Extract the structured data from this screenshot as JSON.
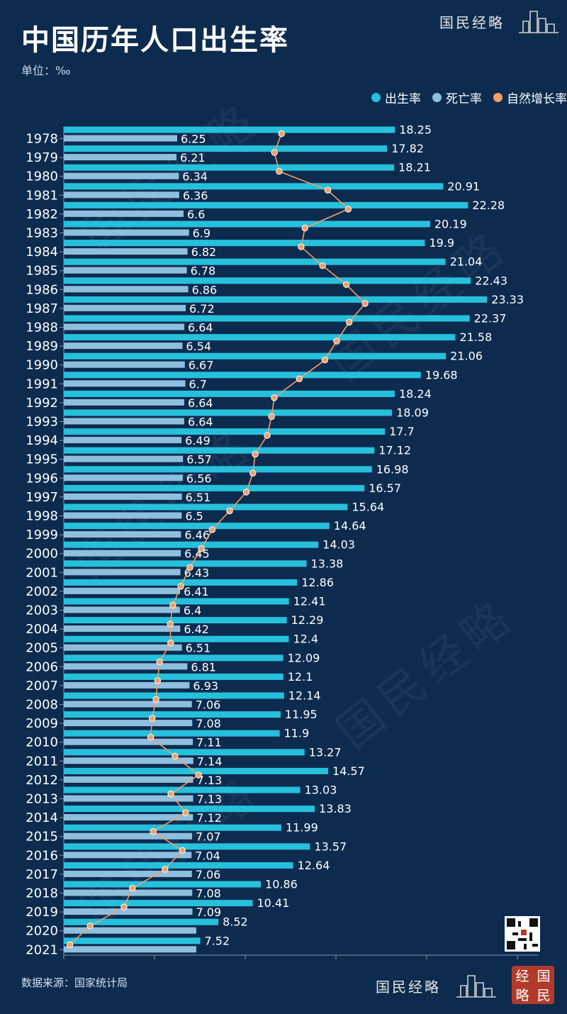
{
  "title": "中国历年人口出生率",
  "unit": "单位：‰",
  "source": "数据来源：国家统计局",
  "brand": "国民经略",
  "seal": [
    "经",
    "国",
    "略",
    "民"
  ],
  "legend": [
    "出生率",
    "死亡率",
    "自然增长率"
  ],
  "colors": {
    "birth": "#26c0dc",
    "death": "#8fbfdf",
    "growth": "#f0a06a",
    "background": "#0d2b4e"
  },
  "chart_data": {
    "type": "bar",
    "orientation": "horizontal",
    "categories": [
      "1978",
      "1979",
      "1980",
      "1981",
      "1982",
      "1983",
      "1984",
      "1985",
      "1986",
      "1987",
      "1988",
      "1989",
      "1990",
      "1991",
      "1992",
      "1993",
      "1994",
      "1995",
      "1996",
      "1997",
      "1998",
      "1999",
      "2000",
      "2001",
      "2002",
      "2003",
      "2004",
      "2005",
      "2006",
      "2007",
      "2008",
      "2009",
      "2010",
      "2011",
      "2012",
      "2013",
      "2014",
      "2015",
      "2016",
      "2017",
      "2018",
      "2019",
      "2020",
      "2021"
    ],
    "series": [
      {
        "name": "出生率",
        "type": "bar",
        "values": [
          18.25,
          17.82,
          18.21,
          20.91,
          22.28,
          20.19,
          19.9,
          21.04,
          22.43,
          23.33,
          22.37,
          21.58,
          21.06,
          19.68,
          18.24,
          18.09,
          17.7,
          17.12,
          16.98,
          16.57,
          15.64,
          14.64,
          14.03,
          13.38,
          12.86,
          12.41,
          12.29,
          12.4,
          12.09,
          12.1,
          12.14,
          11.95,
          11.9,
          13.27,
          14.57,
          13.03,
          13.83,
          11.99,
          13.57,
          12.64,
          10.86,
          10.41,
          8.52,
          7.52
        ]
      },
      {
        "name": "死亡率",
        "type": "bar",
        "values": [
          6.25,
          6.21,
          6.34,
          6.36,
          6.6,
          6.9,
          6.82,
          6.78,
          6.86,
          6.72,
          6.64,
          6.54,
          6.67,
          6.7,
          6.64,
          6.64,
          6.49,
          6.57,
          6.56,
          6.51,
          6.5,
          6.46,
          6.45,
          6.43,
          6.41,
          6.4,
          6.42,
          6.51,
          6.81,
          6.93,
          7.06,
          7.08,
          7.11,
          7.14,
          7.13,
          7.13,
          7.12,
          7.07,
          7.04,
          7.06,
          7.08,
          7.09,
          null,
          null
        ]
      },
      {
        "name": "自然增长率",
        "type": "line",
        "values": [
          12,
          11.61,
          11.87,
          14.55,
          15.68,
          13.29,
          13.08,
          14.26,
          15.57,
          16.61,
          15.73,
          15.04,
          14.39,
          12.98,
          11.6,
          11.45,
          11.21,
          10.55,
          10.42,
          10.06,
          9.14,
          8.18,
          7.58,
          6.95,
          6.45,
          6.01,
          5.87,
          5.89,
          5.28,
          5.17,
          5.08,
          4.87,
          4.79,
          6.13,
          7.43,
          5.9,
          6.71,
          4.93,
          6.53,
          5.58,
          3.78,
          3.32,
          1.45,
          0.34
        ]
      }
    ],
    "xlim": [
      0,
      25
    ],
    "legend_position": "top-right"
  }
}
